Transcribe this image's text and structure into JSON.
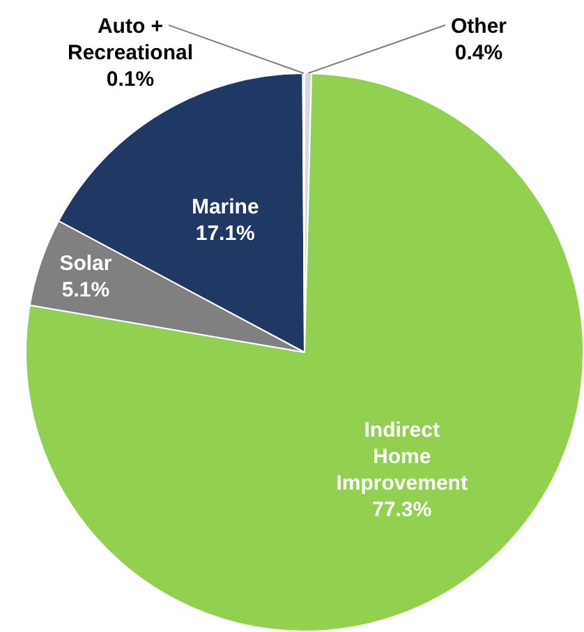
{
  "chart_data": {
    "type": "pie",
    "categories": [
      "Other",
      "Indirect Home Improvement",
      "Solar",
      "Marine",
      "Auto + Recreational"
    ],
    "values": [
      0.4,
      77.3,
      5.1,
      17.1,
      0.1
    ],
    "value_labels": [
      "0.4%",
      "77.3%",
      "5.1%",
      "17.1%",
      "0.1%"
    ],
    "colors": [
      "#d9d9d9",
      "#92d050",
      "#808080",
      "#1f3864",
      "#dae3f3"
    ],
    "legend": false
  }
}
